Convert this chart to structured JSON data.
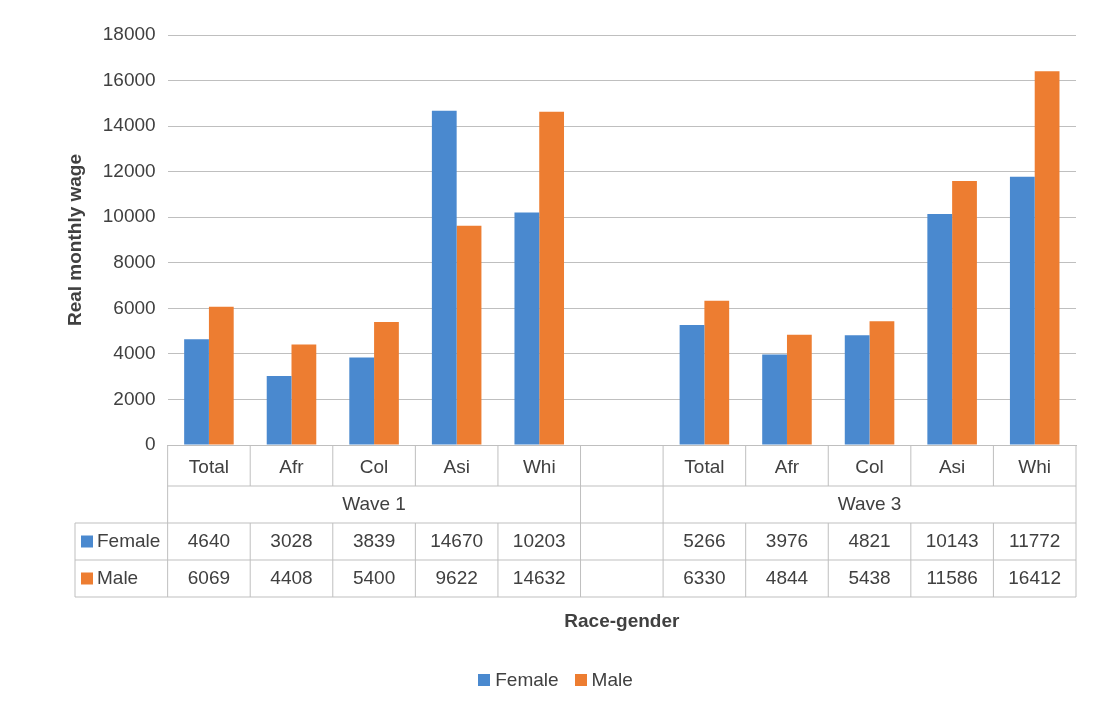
{
  "chart_data": {
    "type": "bar",
    "ylabel": "Real monthly wage",
    "categories": [
      "Total",
      "Afr",
      "Col",
      "Asi",
      "Whi",
      null,
      "Total",
      "Afr",
      "Col",
      "Asi",
      "Whi"
    ],
    "series": [
      {
        "name": "Female",
        "color": "#4a89cf",
        "values": [
          4640,
          3028,
          3839,
          14670,
          10203,
          null,
          5266,
          3976,
          4821,
          10143,
          11772
        ]
      },
      {
        "name": "Male",
        "color": "#ed7d31",
        "values": [
          6069,
          4408,
          5400,
          9622,
          14632,
          null,
          6330,
          4844,
          5438,
          11586,
          16412
        ]
      }
    ],
    "annotations": [
      "Wave 1",
      "Wave 3",
      "Race-gender"
    ],
    "ylim": [
      0,
      18000
    ],
    "yticks": [
      0,
      2000,
      4000,
      6000,
      8000,
      10000,
      12000,
      14000,
      16000,
      18000
    ],
    "grid": "y",
    "legend": "bottom",
    "data_labels": true
  }
}
